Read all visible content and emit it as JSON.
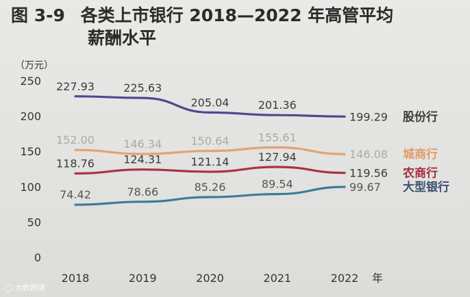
{
  "chart_data": {
    "type": "line",
    "title_prefix": "图 3-9",
    "title_line1": "各类上市银行 2018—2022 年高管平均",
    "title_line2": "薪酬水平",
    "ylabel": "（万元）",
    "xlabel": "年",
    "x": [
      "2018",
      "2019",
      "2020",
      "2021",
      "2022"
    ],
    "ylim": [
      0,
      250
    ],
    "yticks": [
      "0",
      "50",
      "100",
      "150",
      "200",
      "250"
    ],
    "grid": false,
    "legend": "right-end labels",
    "series": [
      {
        "name": "股份行",
        "color": "#4b4a8e",
        "labelColor": "#3a3a3a",
        "nameColor": "#3a3a3a",
        "values": [
          227.93,
          225.63,
          205.04,
          201.36,
          199.29
        ],
        "labels": [
          "227.93",
          "225.63",
          "205.04",
          "201.36",
          "199.29"
        ]
      },
      {
        "name": "城商行",
        "color": "#e3a274",
        "labelColor": "#b0a8a4",
        "nameColor": "#e29a6a",
        "values": [
          152.0,
          146.34,
          150.64,
          155.61,
          146.08
        ],
        "labels": [
          "152.00",
          "146.34",
          "150.64",
          "155.61",
          "146.08"
        ]
      },
      {
        "name": "农商行",
        "color": "#a9323f",
        "labelColor": "#3a3a3a",
        "nameColor": "#a42e3a",
        "values": [
          118.76,
          124.31,
          121.14,
          127.94,
          119.56
        ],
        "labels": [
          "118.76",
          "124.31",
          "121.14",
          "127.94",
          "119.56"
        ]
      },
      {
        "name": "大型银行",
        "color": "#3b7c9a",
        "labelColor": "#555555",
        "nameColor": "#3a4f6e",
        "values": [
          74.42,
          78.66,
          85.26,
          89.54,
          99.67
        ],
        "labels": [
          "74.42",
          "78.66",
          "85.26",
          "89.54",
          "99.67"
        ]
      }
    ]
  },
  "watermark": "大数跨境"
}
